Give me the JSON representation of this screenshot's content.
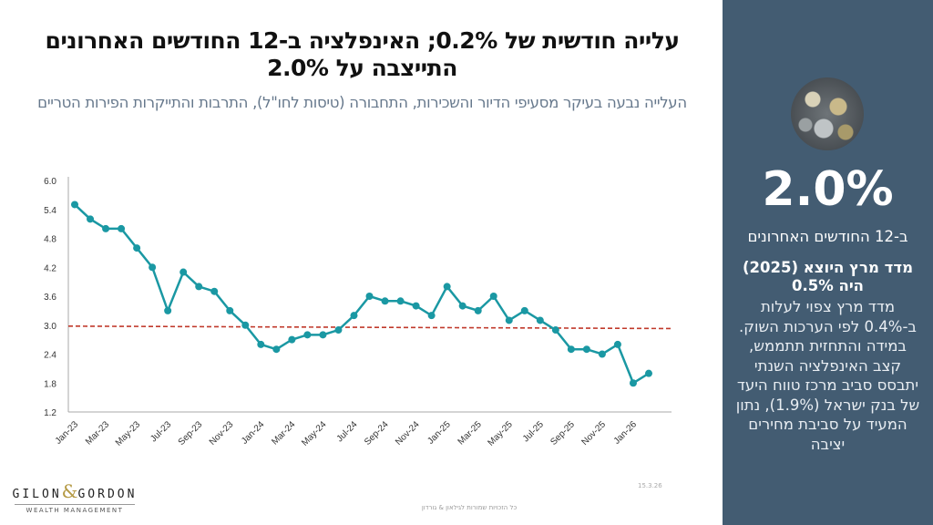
{
  "header": {
    "title": "עלייה חודשית של 0.2%; האינפלציה ב-12 החודשים האחרונים התייצבה על 2.0%",
    "subtitle": "העלייה נבעה בעיקר מסעיפי הדיור והשכירות, התחבורה (טיסות לחו\"ל), התרבות והתייקרות הפירות הטריים"
  },
  "panel": {
    "image": "coins-photo",
    "big_value": "2.0%",
    "caption": "ב-12 החודשים האחרונים",
    "highlight": "מדד מרץ היוצא (2025) היה 0.5%",
    "body": "מדד מרץ צפוי לעלות ב-0.4% לפי הערכות השוק. במידה והתחזית תתממש, קצב האינפלציה השנתי יתבסס סביב מרכז טווח היעד של בנק ישראל (1.9%), נתון המעיד על סביבת מחירים יציבה",
    "background": "#435c72"
  },
  "footer": {
    "logo": "GILON & GORDON WEALTH MANAGEMENT",
    "date": "15.3.26",
    "copyright": "כל הזכויות שמורות לגילאון & גורדון"
  },
  "chart_data": {
    "type": "line",
    "x": [
      "Jan-23",
      "Feb-23",
      "Mar-23",
      "Apr-23",
      "May-23",
      "Jun-23",
      "Jul-23",
      "Aug-23",
      "Sep-23",
      "Oct-23",
      "Nov-23",
      "Dec-23",
      "Jan-24",
      "Feb-24",
      "Mar-24",
      "Apr-24",
      "May-24",
      "Jun-24",
      "Jul-24",
      "Aug-24",
      "Sep-24",
      "Oct-24",
      "Nov-24",
      "Dec-24",
      "Jan-25",
      "Feb-25",
      "Mar-25",
      "Apr-25",
      "May-25",
      "Jun-25",
      "Jul-25",
      "Aug-25",
      "Sep-25",
      "Oct-25",
      "Nov-25",
      "Dec-25",
      "Jan-26",
      "Feb-26"
    ],
    "values": [
      5.5,
      5.2,
      5.0,
      5.0,
      4.6,
      4.2,
      3.3,
      4.1,
      3.8,
      3.7,
      3.3,
      3.0,
      2.6,
      2.5,
      2.7,
      2.8,
      2.8,
      2.9,
      3.2,
      3.6,
      3.5,
      3.5,
      3.4,
      3.2,
      3.8,
      3.4,
      3.3,
      3.6,
      3.1,
      3.3,
      3.1,
      2.9,
      2.5,
      2.5,
      2.4,
      2.6,
      1.8,
      2.0
    ],
    "x_tick_labels": [
      "Jan-23",
      "Mar-23",
      "May-23",
      "Jul-23",
      "Sep-23",
      "Nov-23",
      "Jan-24",
      "Mar-24",
      "May-24",
      "Jul-24",
      "Sep-24",
      "Nov-24",
      "Jan-25",
      "Mar-25",
      "May-25",
      "Jul-25",
      "Sep-25",
      "Nov-25",
      "Jan-26"
    ],
    "y_ticks": [
      "1.2",
      "1.8",
      "2.4",
      "3.0",
      "3.6",
      "4.2",
      "4.8",
      "5.4",
      "6.0"
    ],
    "ylim": [
      1.2,
      6.0
    ],
    "reference_line": {
      "start": 2.98,
      "end": 2.93,
      "style": "dashed",
      "color": "#c0392b"
    },
    "line_color": "#1a98a3",
    "grid": false,
    "legend": "none"
  }
}
